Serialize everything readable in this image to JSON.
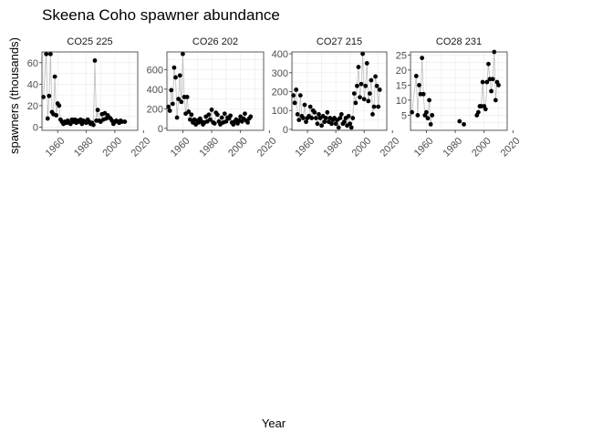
{
  "chart_data": {
    "type": "scatter",
    "title": "Skeena Coho spawner abundance",
    "xlabel": "Year",
    "ylabel": "spawners (thousands)",
    "xlim": [
      1949,
      2016
    ],
    "xticks": [
      1960,
      1980,
      2000,
      2020
    ],
    "grid": true,
    "legend": "none",
    "colors": {
      "point": "#000000",
      "line": "#bdbdbd",
      "grid": "#ebebeb",
      "panel_border": "#333333",
      "axis_text": "#4d4d4d"
    },
    "panels": [
      {
        "name": "CO25 225",
        "ylim": [
          -3,
          70
        ],
        "yticks": [
          0,
          20,
          40,
          60
        ],
        "points": [
          [
            1950,
            28
          ],
          [
            1952,
            68
          ],
          [
            1953,
            8
          ],
          [
            1954,
            29
          ],
          [
            1955,
            68
          ],
          [
            1956,
            14
          ],
          [
            1957,
            12
          ],
          [
            1958,
            47
          ],
          [
            1959,
            11
          ],
          [
            1960,
            22
          ],
          [
            1961,
            20
          ],
          [
            1962,
            7
          ],
          [
            1963,
            5
          ],
          [
            1964,
            3
          ],
          [
            1965,
            5
          ],
          [
            1966,
            4
          ],
          [
            1967,
            6
          ],
          [
            1968,
            4
          ],
          [
            1969,
            3
          ],
          [
            1970,
            7
          ],
          [
            1971,
            5
          ],
          [
            1972,
            7
          ],
          [
            1973,
            4
          ],
          [
            1974,
            6
          ],
          [
            1975,
            5
          ],
          [
            1976,
            7
          ],
          [
            1977,
            3
          ],
          [
            1978,
            6
          ],
          [
            1979,
            5
          ],
          [
            1980,
            4
          ],
          [
            1981,
            7
          ],
          [
            1982,
            5
          ],
          [
            1983,
            3
          ],
          [
            1984,
            4
          ],
          [
            1985,
            2
          ],
          [
            1986,
            62
          ],
          [
            1987,
            6
          ],
          [
            1988,
            16
          ],
          [
            1989,
            6
          ],
          [
            1990,
            5
          ],
          [
            1991,
            12
          ],
          [
            1992,
            7
          ],
          [
            1993,
            13
          ],
          [
            1994,
            8
          ],
          [
            1995,
            11
          ],
          [
            1996,
            9
          ],
          [
            1997,
            8
          ],
          [
            1998,
            6
          ],
          [
            1999,
            3
          ],
          [
            2000,
            5
          ],
          [
            2001,
            6
          ],
          [
            2002,
            5
          ],
          [
            2003,
            4
          ],
          [
            2004,
            6
          ],
          [
            2005,
            5
          ],
          [
            2007,
            5
          ]
        ]
      },
      {
        "name": "CO26 202",
        "ylim": [
          -20,
          780
        ],
        "yticks": [
          0,
          200,
          400,
          600
        ],
        "points": [
          [
            1950,
            220
          ],
          [
            1951,
            180
          ],
          [
            1952,
            390
          ],
          [
            1953,
            250
          ],
          [
            1954,
            620
          ],
          [
            1955,
            520
          ],
          [
            1956,
            110
          ],
          [
            1957,
            300
          ],
          [
            1958,
            540
          ],
          [
            1959,
            270
          ],
          [
            1960,
            760
          ],
          [
            1961,
            320
          ],
          [
            1962,
            150
          ],
          [
            1963,
            320
          ],
          [
            1964,
            170
          ],
          [
            1965,
            90
          ],
          [
            1966,
            140
          ],
          [
            1967,
            60
          ],
          [
            1968,
            90
          ],
          [
            1969,
            40
          ],
          [
            1970,
            80
          ],
          [
            1971,
            60
          ],
          [
            1972,
            100
          ],
          [
            1973,
            70
          ],
          [
            1974,
            40
          ],
          [
            1975,
            60
          ],
          [
            1976,
            120
          ],
          [
            1977,
            70
          ],
          [
            1978,
            140
          ],
          [
            1979,
            90
          ],
          [
            1980,
            190
          ],
          [
            1981,
            60
          ],
          [
            1982,
            50
          ],
          [
            1983,
            160
          ],
          [
            1984,
            140
          ],
          [
            1985,
            70
          ],
          [
            1986,
            40
          ],
          [
            1987,
            110
          ],
          [
            1988,
            60
          ],
          [
            1989,
            150
          ],
          [
            1990,
            70
          ],
          [
            1991,
            110
          ],
          [
            1992,
            100
          ],
          [
            1993,
            130
          ],
          [
            1994,
            60
          ],
          [
            1995,
            40
          ],
          [
            1996,
            70
          ],
          [
            1997,
            90
          ],
          [
            1998,
            50
          ],
          [
            1999,
            80
          ],
          [
            2000,
            120
          ],
          [
            2001,
            70
          ],
          [
            2002,
            100
          ],
          [
            2003,
            150
          ],
          [
            2004,
            80
          ],
          [
            2005,
            60
          ],
          [
            2006,
            100
          ],
          [
            2007,
            120
          ]
        ]
      },
      {
        "name": "CO27 215",
        "ylim": [
          -5,
          410
        ],
        "yticks": [
          0,
          100,
          200,
          300,
          400
        ],
        "points": [
          [
            1950,
            180
          ],
          [
            1951,
            140
          ],
          [
            1952,
            210
          ],
          [
            1953,
            80
          ],
          [
            1954,
            50
          ],
          [
            1955,
            180
          ],
          [
            1956,
            70
          ],
          [
            1957,
            60
          ],
          [
            1958,
            130
          ],
          [
            1959,
            40
          ],
          [
            1960,
            60
          ],
          [
            1961,
            70
          ],
          [
            1962,
            120
          ],
          [
            1963,
            60
          ],
          [
            1964,
            100
          ],
          [
            1965,
            90
          ],
          [
            1966,
            60
          ],
          [
            1967,
            30
          ],
          [
            1968,
            80
          ],
          [
            1969,
            60
          ],
          [
            1970,
            20
          ],
          [
            1971,
            70
          ],
          [
            1972,
            40
          ],
          [
            1973,
            60
          ],
          [
            1974,
            90
          ],
          [
            1975,
            40
          ],
          [
            1976,
            60
          ],
          [
            1977,
            30
          ],
          [
            1978,
            50
          ],
          [
            1979,
            60
          ],
          [
            1980,
            30
          ],
          [
            1981,
            50
          ],
          [
            1982,
            10
          ],
          [
            1983,
            60
          ],
          [
            1984,
            80
          ],
          [
            1985,
            30
          ],
          [
            1986,
            40
          ],
          [
            1987,
            60
          ],
          [
            1988,
            20
          ],
          [
            1989,
            70
          ],
          [
            1990,
            30
          ],
          [
            1991,
            10
          ],
          [
            1992,
            60
          ],
          [
            1993,
            190
          ],
          [
            1994,
            140
          ],
          [
            1995,
            230
          ],
          [
            1996,
            330
          ],
          [
            1997,
            170
          ],
          [
            1998,
            240
          ],
          [
            1999,
            400
          ],
          [
            2000,
            160
          ],
          [
            2001,
            230
          ],
          [
            2002,
            350
          ],
          [
            2003,
            150
          ],
          [
            2004,
            190
          ],
          [
            2005,
            260
          ],
          [
            2006,
            80
          ],
          [
            2007,
            120
          ],
          [
            2008,
            280
          ],
          [
            2009,
            230
          ],
          [
            2010,
            120
          ],
          [
            2011,
            210
          ]
        ]
      },
      {
        "name": "CO28 231",
        "ylim": [
          0,
          26
        ],
        "yticks": [
          5,
          10,
          15,
          20,
          25
        ],
        "points": [
          [
            1950,
            6
          ],
          [
            1953,
            18
          ],
          [
            1954,
            5
          ],
          [
            1955,
            15
          ],
          [
            1956,
            12
          ],
          [
            1957,
            24
          ],
          [
            1958,
            12
          ],
          [
            1959,
            5
          ],
          [
            1960,
            6
          ],
          [
            1961,
            4
          ],
          [
            1962,
            10
          ],
          [
            1963,
            2
          ],
          [
            1964,
            5
          ],
          [
            1983,
            3
          ],
          [
            1986,
            2
          ],
          [
            1995,
            5
          ],
          [
            1996,
            6
          ],
          [
            1997,
            8
          ],
          [
            1998,
            8
          ],
          [
            1999,
            16
          ],
          [
            2000,
            8
          ],
          [
            2001,
            7
          ],
          [
            2002,
            16
          ],
          [
            2003,
            22
          ],
          [
            2004,
            17
          ],
          [
            2005,
            13
          ],
          [
            2006,
            17
          ],
          [
            2007,
            26
          ],
          [
            2008,
            10
          ],
          [
            2009,
            16
          ],
          [
            2010,
            15
          ]
        ]
      }
    ]
  }
}
